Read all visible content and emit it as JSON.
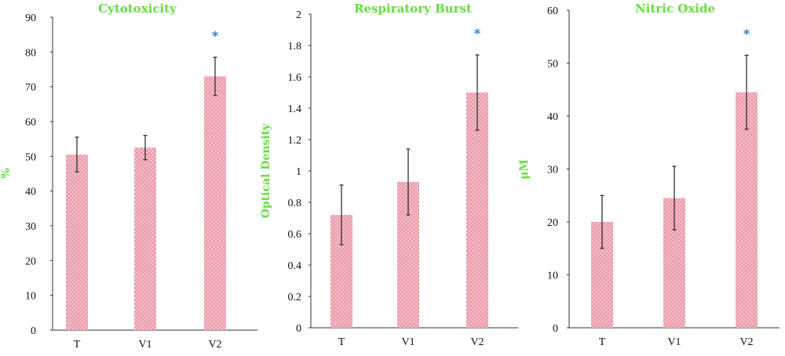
{
  "colors": {
    "title": "#66dd44",
    "axis_label": "#66dd44",
    "bar_fill": "#f6c3cc",
    "bar_pattern": "#e88a9c",
    "significance": "#3a7bd5",
    "axis": "#333333"
  },
  "chart_data": [
    {
      "type": "bar",
      "title": "Cytotoxicity",
      "ylabel": "%",
      "xlabel": "",
      "ylim": [
        0,
        90
      ],
      "yticks": [
        0,
        10,
        20,
        30,
        40,
        50,
        60,
        70,
        80,
        90
      ],
      "categories": [
        "T",
        "V1",
        "V2"
      ],
      "values": [
        50.5,
        52.5,
        73
      ],
      "error": [
        5,
        3.5,
        5.5
      ],
      "significance": [
        "",
        "",
        "*"
      ],
      "grid": false
    },
    {
      "type": "bar",
      "title": "Respiratory Burst",
      "ylabel": "Optical Density",
      "xlabel": "",
      "ylim": [
        0,
        2
      ],
      "yticks": [
        0,
        0.2,
        0.4,
        0.6,
        0.8,
        1,
        1.2,
        1.4,
        1.6,
        1.8,
        2
      ],
      "categories": [
        "T",
        "V1",
        "V2"
      ],
      "values": [
        0.72,
        0.93,
        1.5
      ],
      "error": [
        0.19,
        0.21,
        0.24
      ],
      "significance": [
        "",
        "",
        "*"
      ],
      "grid": false
    },
    {
      "type": "bar",
      "title": "Nitric Oxide",
      "ylabel": "μM",
      "xlabel": "",
      "ylim": [
        0,
        60
      ],
      "yticks": [
        0,
        10,
        20,
        30,
        40,
        50,
        60
      ],
      "categories": [
        "T",
        "V1",
        "V2"
      ],
      "values": [
        20,
        24.5,
        44.5
      ],
      "error": [
        5,
        6,
        7
      ],
      "significance": [
        "",
        "",
        "*"
      ],
      "grid": false
    }
  ]
}
